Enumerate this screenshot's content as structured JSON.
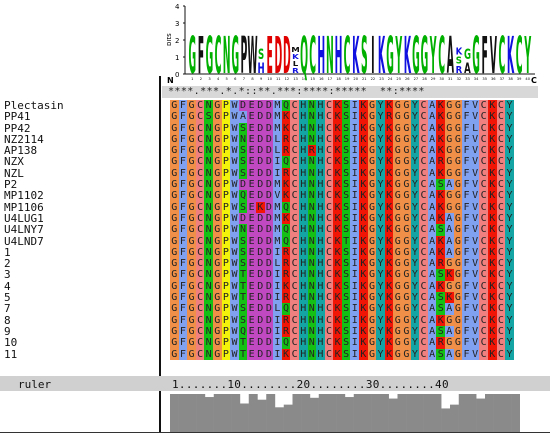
{
  "logo": {
    "axis_label": "bits",
    "y_ticks": [
      "4",
      "3",
      "2",
      "1",
      "0"
    ],
    "n_label": "N",
    "c_label": "C",
    "stacks": [
      [
        "G"
      ],
      [
        "F"
      ],
      [
        "G"
      ],
      [
        "C"
      ],
      [
        "N"
      ],
      [
        "G"
      ],
      [
        "P"
      ],
      [
        "W"
      ],
      [
        "S",
        "H"
      ],
      [
        "E"
      ],
      [
        "D"
      ],
      [
        "D"
      ],
      [
        "M",
        "K",
        "L",
        "R"
      ],
      [
        "Q"
      ],
      [
        "C"
      ],
      [
        "H"
      ],
      [
        "N"
      ],
      [
        "H"
      ],
      [
        "C"
      ],
      [
        "K"
      ],
      [
        "S"
      ],
      [
        "I"
      ],
      [
        "K"
      ],
      [
        "G"
      ],
      [
        "Y"
      ],
      [
        "K"
      ],
      [
        "G"
      ],
      [
        "G"
      ],
      [
        "Y"
      ],
      [
        "C"
      ],
      [
        "A"
      ],
      [
        "K",
        "S",
        "R"
      ],
      [
        "G",
        "A"
      ],
      [
        "G"
      ],
      [
        "F"
      ],
      [
        "V"
      ],
      [
        "C"
      ],
      [
        "K"
      ],
      [
        "C"
      ],
      [
        "Y"
      ]
    ]
  },
  "alignment": {
    "consensus": "****.***.*.*::**.***:****:*****  **:****",
    "sequences": [
      {
        "name": "Plectasin",
        "seq": "GFGCNGPWDEDDMQCHNHCKSIKGYKGGYCAKGGFVCKCY"
      },
      {
        "name": "PP41",
        "seq": "GFGCSGPWAEDDMKCHNHCKSIKGYRGGYCAKGGFVCKCY"
      },
      {
        "name": "PP42",
        "seq": "GFGCNGPWSEDDMKCHNHCKSIKGYKGGYCAKGGFLCKCY"
      },
      {
        "name": "NZ2114",
        "seq": "GFGCNGPWNEDDLRCHNHCKSIKGYKGGYCAKGGFVCKCY"
      },
      {
        "name": "AP138",
        "seq": "GFGCNGPWSEDDLRCHRHCKSIKGYKGGYCAKGGFVCKCY"
      },
      {
        "name": "NZX",
        "seq": "GFGCNGPWSEDDIQCHNHCKSIKGYKGGYCARGGFVCKCY"
      },
      {
        "name": "NZL",
        "seq": "GFGCNGPWSEDDIRCHNHCKSIKGYKGGYCAKGGFVCKCY"
      },
      {
        "name": "P2",
        "seq": "GFGCNGPWDEDDMKCHNHCKSIKGYKGGYCASAGFVCKCY"
      },
      {
        "name": "MP1102",
        "seq": "GFGCNGPWQEDDVKCHNHCKSIKGYKGGYCAKGGFVCKCY"
      },
      {
        "name": "MP1106",
        "seq": "GFGCNGPWSEKDMQCHNHCKSIKGYKGGYCAKGGFVCKCY"
      },
      {
        "name": "U4LUG1",
        "seq": "GFGCNGPWDEDDMKCHNHCKSIKGYKGGYCAKAGFVCKCY"
      },
      {
        "name": "U4LNY7",
        "seq": "GFGCNGPWNEDDMQCHNHCKSIKGYKGGYCASAGFVCKCY"
      },
      {
        "name": "U4LND7",
        "seq": "GFGCNGPWSEDDMQCHNHCKTIKGYKGGYCAKAGFVCKCY"
      },
      {
        "name": "1",
        "seq": "GFGCNGPWSEDDIRCHNHCKSIKGYKGGYCAKAGFVCKCY"
      },
      {
        "name": "2",
        "seq": "GFGCNGPWSEDDLRCHNHCKSIKGYKGGYCARGGFVCKCY"
      },
      {
        "name": "3",
        "seq": "GFGCNGPWTEDDIRCHNHCKSIKGYKGGYCASKGFVCKCY"
      },
      {
        "name": "4",
        "seq": "GFGCNGPWTEDDIKCHNHCKSIKGYKGGYCAKGGFVCKCY"
      },
      {
        "name": "5",
        "seq": "GFGCNGPWTEDDIRCHNHCKSIKGYKGGYCASKGFVCKCY"
      },
      {
        "name": "7",
        "seq": "GFGCNGPWSEDDLQCHNHCKSIKGYKGGYCASAGFVCKCY"
      },
      {
        "name": "8",
        "seq": "GFGCNGPWSEDDIRCHNHCKSIKGYKGGYCAKGGFVCKCY"
      },
      {
        "name": "9",
        "seq": "GFGCNGPWQEDDIRCHNHCKSIKGYKGGYCASAGFVCKCY"
      },
      {
        "name": "10",
        "seq": "GFGCNGPWTEDDIQCHNHCKSIKGYKGGYCARGGFVCKCY"
      },
      {
        "name": "11",
        "seq": "GFGCNGPWTEDDIKCHNHCKSIKGYKGGYCASAGFVCKCY"
      }
    ],
    "ruler_label": "ruler",
    "ruler": "1.......10........20........30........40",
    "conservation": [
      1,
      1,
      1,
      1,
      0.92,
      1,
      1,
      1,
      0.75,
      1,
      0.85,
      1,
      0.65,
      0.72,
      1,
      1,
      0.9,
      1,
      1,
      1,
      0.92,
      1,
      1,
      1,
      1,
      0.88,
      1,
      1,
      1,
      1,
      1,
      0.62,
      0.72,
      1,
      1,
      0.88,
      1,
      1,
      1,
      1
    ]
  },
  "colors": {
    "G": "#f09048",
    "P": "#f2f20a",
    "C": "#f08080",
    "K": "#f01505",
    "R": "#f01505",
    "H": "#15a4a4",
    "Y": "#15a4a4",
    "F": "#80a0f0",
    "W": "#80a0f0",
    "A": "#80a0f0",
    "I": "#80a0f0",
    "L": "#80a0f0",
    "M": "#80a0f0",
    "V": "#80a0f0",
    "S": "#15c015",
    "T": "#15c015",
    "N": "#15c015",
    "Q": "#15c015",
    "D": "#c048c0",
    "E": "#c048c0",
    "logo_green": "#00b000",
    "logo_red": "#e00000",
    "logo_blue": "#1010e0",
    "logo_purple": "#b000b0",
    "logo_black": "#111111"
  }
}
